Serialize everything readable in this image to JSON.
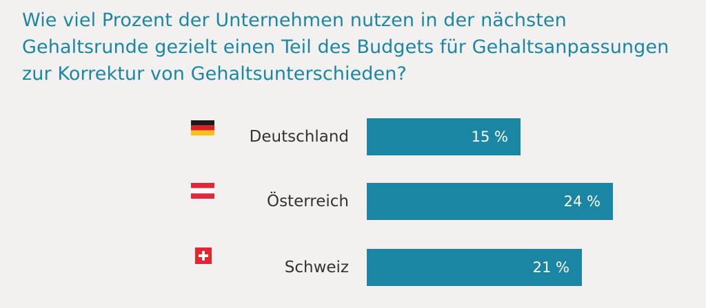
{
  "colors": {
    "background": "#f2f1ef",
    "title": "#1b87a5",
    "bar": "#1a86a3",
    "label": "#333333",
    "value": "#ffffff"
  },
  "chart_data": {
    "type": "bar",
    "orientation": "horizontal",
    "title": "Wie viel Prozent der Unternehmen nutzen in der nächsten Gehaltsrunde gezielt einen Teil des Budgets für Gehaltsanpassungen zur Korrektur von Gehaltsunterschieden?",
    "categories": [
      "Deutschland",
      "Österreich",
      "Schweiz"
    ],
    "values": [
      15,
      24,
      21
    ],
    "value_labels": [
      "15 %",
      "24 %",
      "21 %"
    ],
    "flags": [
      "germany-flag-icon",
      "austria-flag-icon",
      "switzerland-flag-icon"
    ],
    "unit": "%",
    "xlim": [
      0,
      24
    ],
    "grid": false,
    "legend": "none"
  }
}
